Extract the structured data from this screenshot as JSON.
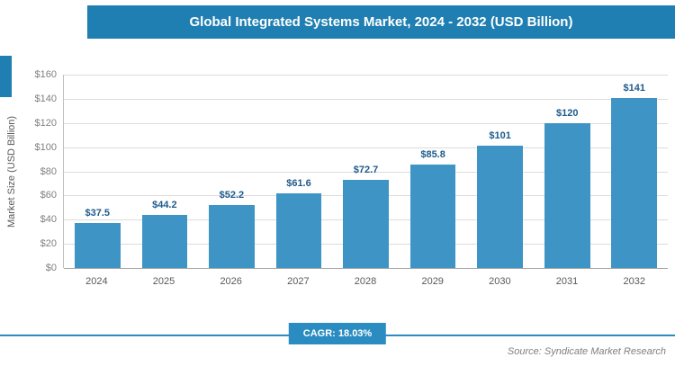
{
  "header": {
    "title": "Global Integrated Systems Market, 2024 - 2032 (USD Billion)"
  },
  "chart_data": {
    "type": "bar",
    "title": "Global Integrated Systems Market, 2024 - 2032 (USD Billion)",
    "categories": [
      "2024",
      "2025",
      "2026",
      "2027",
      "2028",
      "2029",
      "2030",
      "2031",
      "2032"
    ],
    "values": [
      37.5,
      44.2,
      52.2,
      61.6,
      72.7,
      85.8,
      101,
      120,
      141
    ],
    "value_labels": [
      "$37.5",
      "$44.2",
      "$52.2",
      "$61.6",
      "$72.7",
      "$85.8",
      "$101",
      "$120",
      "$141"
    ],
    "xlabel": "",
    "ylabel": "Market Size (USD Billion)",
    "ylim": [
      0,
      160
    ],
    "yticks": [
      "$0",
      "$20",
      "$40",
      "$60",
      "$80",
      "$100",
      "$120",
      "$140",
      "$160"
    ],
    "grid": true,
    "legend": "none"
  },
  "footer": {
    "cagr_label": "CAGR: 18.03%",
    "source": "Source: Syndicate Market Research"
  },
  "colors": {
    "banner": "#1f7fb2",
    "bar": "#3d94c5",
    "badge": "#2a8cc0",
    "value_label": "#1e5a8c",
    "grid": "#dcdcdc",
    "axis": "#a6a6a6"
  }
}
